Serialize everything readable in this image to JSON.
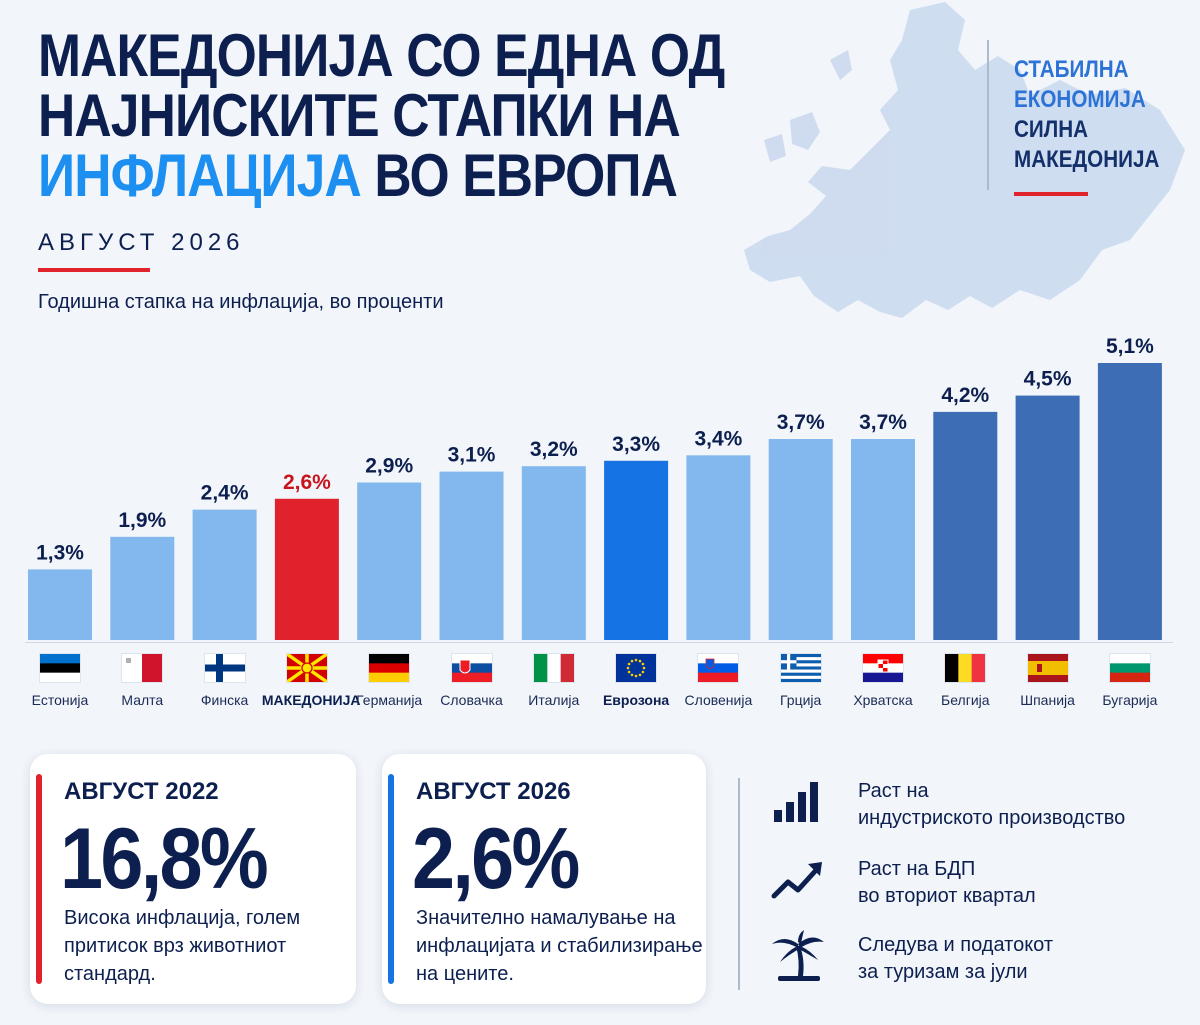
{
  "header": {
    "title_line1": "МАКЕДОНИЈА СО ЕДНА ОД",
    "title_line2": "НАЈНИСКИТЕ СТАПКИ НА",
    "title_line3_highlight": "ИНФЛАЦИЈА",
    "title_line3_rest": " ВО ЕВРОПА",
    "month": "АВГУСТ 2026",
    "subtitle": "Годишна стапка на инфлација, во проценти"
  },
  "slogan": {
    "line1": "СТАБИЛНА",
    "line2": "ЕКОНОМИЈА",
    "line3": "СИЛНА",
    "line4": "МАКЕДОНИЈА"
  },
  "colors": {
    "light_bar": "#82b8ee",
    "macedonia_bar": "#e0222c",
    "eurozone_bar": "#1673e4",
    "high_bar": "#3d6db5",
    "accent_red": "#e0222c",
    "accent_blue": "#1c8ff0"
  },
  "chart_data": {
    "type": "bar",
    "categories": [
      "Естонија",
      "Малта",
      "Финска",
      "МАКЕДОНИЈА",
      "Германија",
      "Словачка",
      "Италија",
      "Еврозона",
      "Словенија",
      "Грција",
      "Хрватска",
      "Белгија",
      "Шпанија",
      "Бугарија"
    ],
    "values": [
      1.3,
      1.9,
      2.4,
      2.6,
      2.9,
      3.1,
      3.2,
      3.3,
      3.4,
      3.7,
      3.7,
      4.2,
      4.5,
      5.1
    ],
    "value_labels": [
      "1,3%",
      "1,9%",
      "2,4%",
      "2,6%",
      "2,9%",
      "3,1%",
      "3,2%",
      "3,3%",
      "3,4%",
      "3,7%",
      "3,7%",
      "4,2%",
      "4,5%",
      "5,1%"
    ],
    "flags": [
      "estonia-flag",
      "malta-flag",
      "finland-flag",
      "macedonia-flag",
      "germany-flag",
      "slovakia-flag",
      "italy-flag",
      "eu-flag",
      "slovenia-flag",
      "greece-flag",
      "croatia-flag",
      "belgium-flag",
      "spain-flag",
      "bulgaria-flag"
    ],
    "highlight": [
      "",
      "",
      "",
      "macedonia",
      "",
      "",
      "",
      "eurozone",
      "",
      "",
      "",
      "high",
      "high",
      "high"
    ],
    "title": "",
    "xlabel": "",
    "ylabel": "Годишна стапка на инфлација, во проценти",
    "ylim": [
      0,
      5.1
    ],
    "grid": false,
    "legend": "none"
  },
  "card_2022": {
    "heading": "АВГУСТ 2022",
    "value": "16,8%",
    "text": "Висока инфлација, голем притисок врз животниот стандард."
  },
  "card_2026": {
    "heading": "АВГУСТ 2026",
    "value": "2,6%",
    "text": "Значително намалување на инфлацијата и стабилизирање на цените."
  },
  "facts": [
    {
      "icon": "bar-chart-icon",
      "line1": "Раст на",
      "line2": "индустриското производство"
    },
    {
      "icon": "trend-up-icon",
      "line1": "Раст на БДП",
      "line2": "во вториот квартал"
    },
    {
      "icon": "palm-tree-icon",
      "line1": "Следува и податокот",
      "line2": "за туризам за јули"
    }
  ]
}
